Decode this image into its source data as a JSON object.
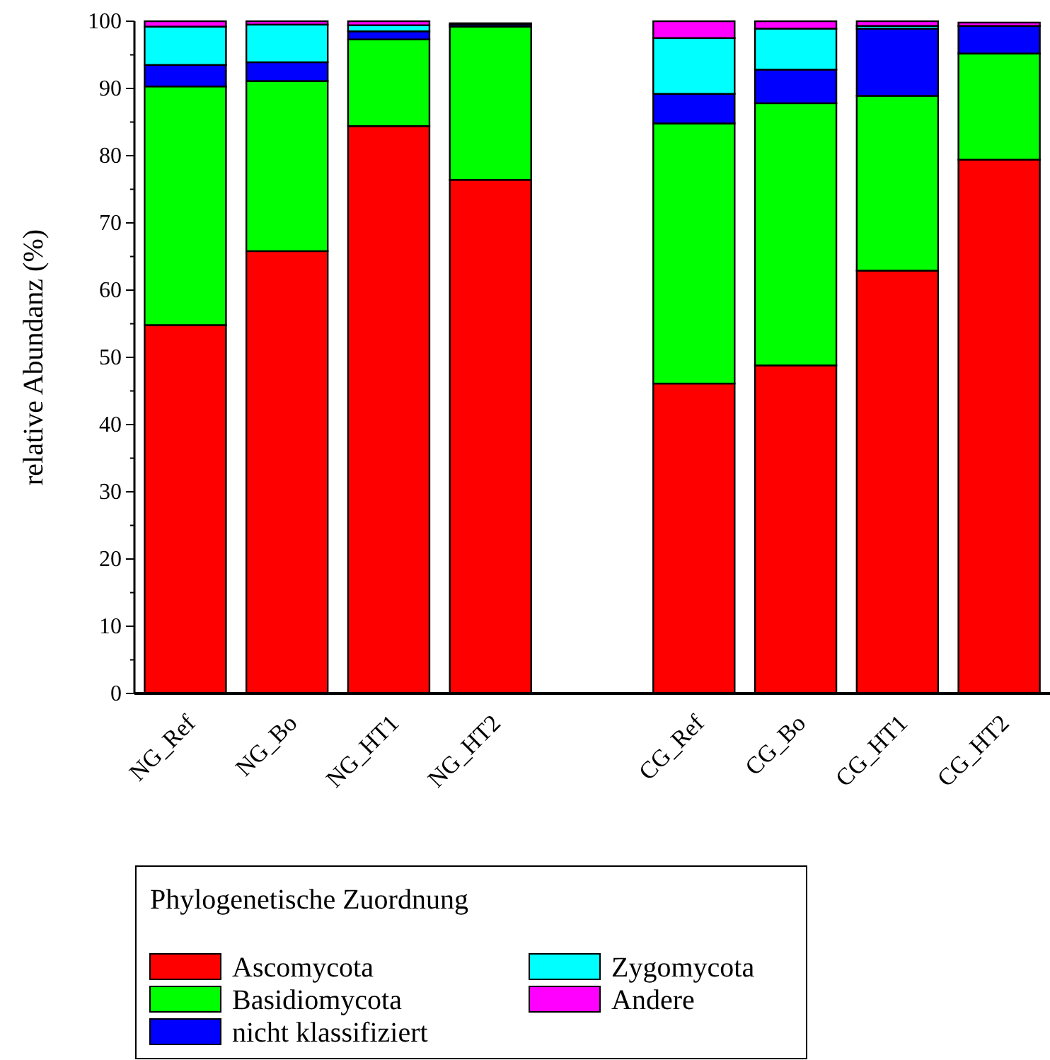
{
  "chart_data": {
    "type": "bar",
    "stacked": true,
    "ylabel": "relative Abundanz (%)",
    "legend_title": "Phylogenetische Zuordnung",
    "legend": "bottom",
    "ylim": [
      0,
      100
    ],
    "yticks": [
      0,
      10,
      20,
      30,
      40,
      50,
      60,
      70,
      80,
      90,
      100
    ],
    "categories": [
      "NG_Ref",
      "NG_Bo",
      "NG_HT1",
      "NG_HT2",
      null,
      "CG_Ref",
      "CG_Bo",
      "CG_HT1",
      "CG_HT2"
    ],
    "series": [
      {
        "name": "Ascomycota",
        "color": "#ff0000",
        "values": [
          54.8,
          65.8,
          84.4,
          76.4,
          null,
          46.1,
          48.8,
          62.9,
          79.4
        ]
      },
      {
        "name": "Basidiomycota",
        "color": "#00ff00",
        "values": [
          35.5,
          25.3,
          12.9,
          22.8,
          null,
          38.7,
          39.0,
          26.0,
          15.8
        ]
      },
      {
        "name": "nicht klassifiziert",
        "color": "#0000ff",
        "values": [
          3.2,
          2.8,
          1.2,
          0.3,
          null,
          4.4,
          5.0,
          10.0,
          4.1
        ]
      },
      {
        "name": "Zygomycota",
        "color": "#00ffff",
        "values": [
          5.7,
          5.6,
          0.9,
          null,
          null,
          8.3,
          6.1,
          0.4,
          null
        ]
      },
      {
        "name": "Andere",
        "color": "#ff00ff",
        "values": [
          0.8,
          0.5,
          0.6,
          0.2,
          null,
          2.5,
          1.1,
          0.7,
          0.5
        ]
      }
    ]
  }
}
